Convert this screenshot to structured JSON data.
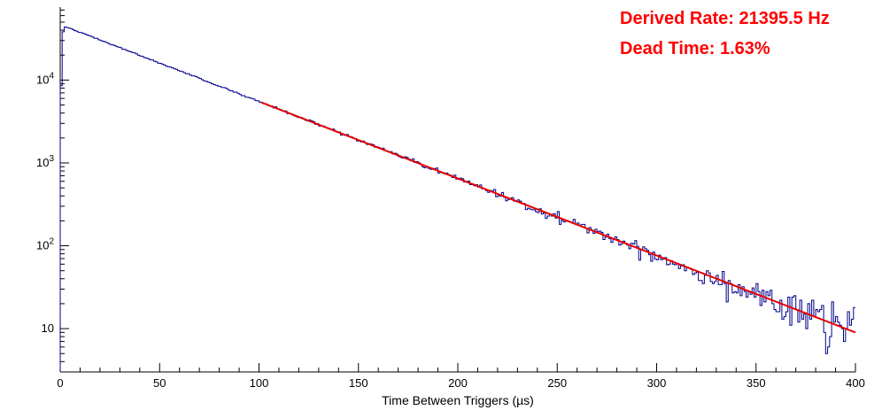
{
  "window": {
    "background": "#ffffff"
  },
  "chart_data": {
    "type": "line",
    "subtype": "log-histogram-with-exponential-fit",
    "title": "",
    "xlabel": "Time Between Triggers (µs)",
    "ylabel": "",
    "xlim": [
      0,
      400
    ],
    "ylim": [
      3,
      76000
    ],
    "ylog": true,
    "grid": false,
    "axis_color": "#000000",
    "x_ticks": [
      0,
      50,
      100,
      150,
      200,
      250,
      300,
      350,
      400
    ],
    "x_minor_step": 10,
    "y_ticks": [
      10,
      100,
      1000,
      10000
    ],
    "legend_position": "none",
    "series": [
      {
        "name": "time-between-triggers-histogram",
        "style": "step-histogram",
        "color": "#00008b",
        "bins": 400,
        "bin_width_us": 1,
        "model": "exponential-decay",
        "amplitude_counts": 46800,
        "decay_rate_per_us": 0.0213955,
        "deadtime_rise_us": 1.1,
        "noise": "poisson",
        "seed": 42
      },
      {
        "name": "exponential-fit",
        "style": "line",
        "color": "#e60000",
        "line_width": 2,
        "model": "exponential-decay",
        "amplitude_counts": 46800,
        "decay_rate_per_us": 0.0213955,
        "x_range": [
          101,
          400
        ]
      }
    ],
    "annotations": [
      {
        "id": "derived-rate",
        "text": "Derived Rate: 21395.5 Hz",
        "value": 21395.5,
        "unit": "Hz",
        "color": "#ff0000"
      },
      {
        "id": "dead-time",
        "text": "Dead Time: 1.63%",
        "value": 1.63,
        "unit": "%",
        "color": "#ff0000"
      }
    ]
  }
}
